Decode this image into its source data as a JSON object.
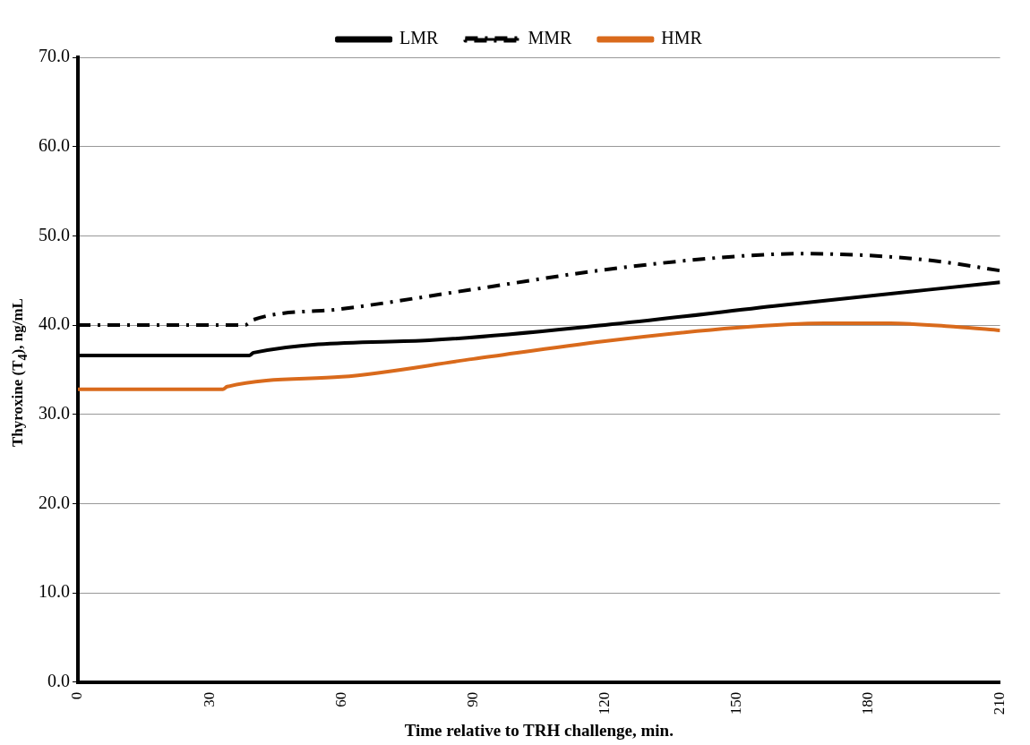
{
  "chart_data": {
    "type": "line",
    "xlabel": "Time relative to TRH challenge, min.",
    "ylabel": "Thyroxine  (T$_{4}$), ng/mL",
    "xlim": [
      0,
      210
    ],
    "xticks": [
      0,
      30,
      60,
      90,
      120,
      150,
      180,
      210
    ],
    "ylim": [
      0,
      70
    ],
    "yticks": [
      {
        "value": 0,
        "label": "0.0"
      },
      {
        "value": 10,
        "label": "10.0"
      },
      {
        "value": 20,
        "label": "20.0"
      },
      {
        "value": 30,
        "label": "30.0"
      },
      {
        "value": 40,
        "label": "40.0"
      },
      {
        "value": 50,
        "label": "50.0"
      },
      {
        "value": 60,
        "label": "60.0"
      },
      {
        "value": 70,
        "label": "70.0"
      }
    ],
    "grid": "y",
    "legend": "top",
    "marker": "none",
    "series": [
      {
        "name": "LMR",
        "color": "#000000",
        "line_style": "solid",
        "x": [
          0,
          39,
          40,
          80,
          120,
          160,
          210
        ],
        "values": [
          36.6,
          36.6,
          36.9,
          38.3,
          40.0,
          42.2,
          44.8
        ]
      },
      {
        "name": "MMR",
        "color": "#000000",
        "line_style": "dashdot",
        "x": [
          0,
          38,
          40,
          60,
          90,
          120,
          150,
          165,
          180,
          195,
          210
        ],
        "values": [
          40.0,
          40.0,
          40.6,
          41.8,
          44.0,
          46.2,
          47.7,
          48.0,
          47.8,
          47.2,
          46.1
        ]
      },
      {
        "name": "HMR",
        "color": "#d96a1c",
        "line_style": "solid",
        "x": [
          0,
          33,
          34,
          60,
          90,
          120,
          150,
          170,
          185,
          200,
          210
        ],
        "values": [
          32.8,
          32.8,
          33.1,
          34.2,
          36.2,
          38.2,
          39.7,
          40.2,
          40.2,
          39.8,
          39.4
        ]
      }
    ]
  }
}
